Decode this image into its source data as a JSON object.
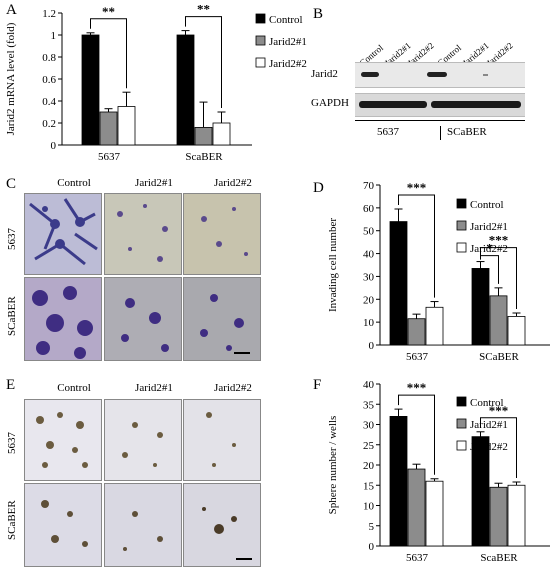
{
  "panels": {
    "A": "A",
    "B": "B",
    "C": "C",
    "D": "D",
    "E": "E",
    "F": "F"
  },
  "legend": [
    "Control",
    "Jarid2#1",
    "Jarid2#2"
  ],
  "colors": {
    "control": "#000000",
    "jarid1": "#8c8c8c",
    "jarid2": "#ffffff"
  },
  "blot": {
    "lanes": [
      "Control",
      "Jarid2#1",
      "Jarid2#2",
      "Control",
      "Jarid2#1",
      "Jarid2#2"
    ],
    "rows": [
      "Jarid2",
      "GAPDH"
    ],
    "groups": [
      "5637",
      "SCaBER"
    ]
  },
  "panel_c": {
    "cols": [
      "Control",
      "Jarid2#1",
      "Jarid2#2"
    ],
    "rows": [
      "5637",
      "SCaBER"
    ]
  },
  "panel_e": {
    "cols": [
      "Control",
      "Jarid2#1",
      "Jarid2#2"
    ],
    "rows": [
      "5637",
      "SCaBER"
    ]
  },
  "chart_data": [
    {
      "id": "A",
      "type": "bar",
      "ylabel": "Jarid2 mRNA level (fold)",
      "categories": [
        "5637",
        "ScaBER"
      ],
      "ylim": [
        0,
        1.2
      ],
      "yticks": [
        "0",
        "0.2",
        "0.4",
        "0.6",
        "0.8",
        "1",
        "1.2"
      ],
      "series": [
        {
          "name": "Control",
          "values": [
            1.0,
            1.0
          ],
          "err": [
            0.02,
            0.04
          ]
        },
        {
          "name": "Jarid2#1",
          "values": [
            0.3,
            0.16
          ],
          "err": [
            0.03,
            0.23
          ]
        },
        {
          "name": "Jarid2#2",
          "values": [
            0.35,
            0.2
          ],
          "err": [
            0.13,
            0.1
          ]
        }
      ],
      "sig": [
        "**",
        "**"
      ]
    },
    {
      "id": "D",
      "type": "bar",
      "ylabel": "Invading cell number",
      "categories": [
        "5637",
        "SCaBER"
      ],
      "ylim": [
        0,
        70
      ],
      "yticks": [
        "0",
        "10",
        "20",
        "30",
        "40",
        "50",
        "60",
        "70"
      ],
      "series": [
        {
          "name": "Control",
          "values": [
            54,
            33.5
          ],
          "err": [
            5.5,
            3
          ]
        },
        {
          "name": "Jarid2#1",
          "values": [
            11.5,
            21.5
          ],
          "err": [
            2,
            3.5
          ]
        },
        {
          "name": "Jarid2#2",
          "values": [
            16.5,
            12.5
          ],
          "err": [
            2.5,
            1.5
          ]
        }
      ],
      "sig": [
        "***",
        "***",
        "*"
      ]
    },
    {
      "id": "F",
      "type": "bar",
      "ylabel": "Sphere number / wells",
      "categories": [
        "5637",
        "ScaBER"
      ],
      "ylim": [
        0,
        40
      ],
      "yticks": [
        "0",
        "5",
        "10",
        "15",
        "20",
        "25",
        "30",
        "35",
        "40"
      ],
      "series": [
        {
          "name": "Control",
          "values": [
            32,
            27
          ],
          "err": [
            1.8,
            1.2
          ]
        },
        {
          "name": "Jarid2#1",
          "values": [
            19,
            14.5
          ],
          "err": [
            1.2,
            1
          ]
        },
        {
          "name": "Jarid2#2",
          "values": [
            16,
            15
          ],
          "err": [
            0.6,
            0.8
          ]
        }
      ],
      "sig": [
        "***",
        "***"
      ]
    }
  ]
}
